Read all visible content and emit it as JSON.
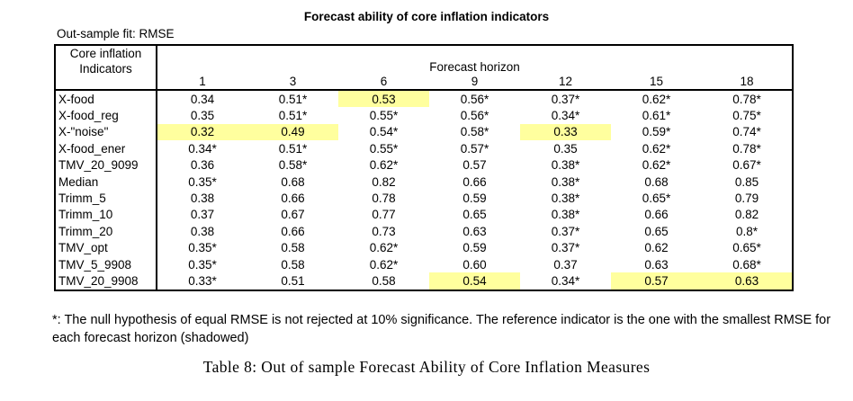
{
  "page": {
    "title": "Forecast ability of core inflation indicators",
    "subtitle": "Out-sample fit: RMSE",
    "footnote": "*: The null hypothesis of equal RMSE is not rejected at 10% significance. The reference indicator is the one with the smallest RMSE for each forecast horizon (shadowed)",
    "caption": "Table 8: Out of sample Forecast Ability of Core Inflation Measures"
  },
  "colors": {
    "highlight": "#ffff9e",
    "text": "#000000",
    "border": "#000000",
    "background": "#ffffff"
  },
  "table": {
    "corner": {
      "line1": "Core inflation",
      "line2": "Indicators"
    },
    "group_header": "Forecast horizon",
    "horizons": [
      "1",
      "3",
      "6",
      "9",
      "12",
      "15",
      "18"
    ],
    "rows": [
      {
        "label": "X-food",
        "values": [
          "0.34",
          "0.51*",
          "0.53",
          "0.56*",
          "0.37*",
          "0.62*",
          "0.78*"
        ]
      },
      {
        "label": "X-food_reg",
        "values": [
          "0.35",
          "0.51*",
          "0.55*",
          "0.56*",
          "0.34*",
          "0.61*",
          "0.75*"
        ]
      },
      {
        "label": "X-\"noise\"",
        "values": [
          "0.32",
          "0.49",
          "0.54*",
          "0.58*",
          "0.33",
          "0.59*",
          "0.74*"
        ]
      },
      {
        "label": "X-food_ener",
        "values": [
          "0.34*",
          "0.51*",
          "0.55*",
          "0.57*",
          "0.35",
          "0.62*",
          "0.78*"
        ]
      },
      {
        "label": "TMV_20_9099",
        "values": [
          "0.36",
          "0.58*",
          "0.62*",
          "0.57",
          "0.38*",
          "0.62*",
          "0.67*"
        ]
      },
      {
        "label": "Median",
        "values": [
          "0.35*",
          "0.68",
          "0.82",
          "0.66",
          "0.38*",
          "0.68",
          "0.85"
        ]
      },
      {
        "label": "Trimm_5",
        "values": [
          "0.38",
          "0.66",
          "0.78",
          "0.59",
          "0.38*",
          "0.65*",
          "0.79"
        ]
      },
      {
        "label": "Trimm_10",
        "values": [
          "0.37",
          "0.67",
          "0.77",
          "0.65",
          "0.38*",
          "0.66",
          "0.82"
        ]
      },
      {
        "label": "Trimm_20",
        "values": [
          "0.38",
          "0.66",
          "0.73",
          "0.63",
          "0.37*",
          "0.65",
          "0.8*"
        ]
      },
      {
        "label": "TMV_opt",
        "values": [
          "0.35*",
          "0.58",
          "0.62*",
          "0.59",
          "0.37*",
          "0.62",
          "0.65*"
        ]
      },
      {
        "label": "TMV_5_9908",
        "values": [
          "0.35*",
          "0.58",
          "0.62*",
          "0.60",
          "0.37",
          "0.63",
          "0.68*"
        ]
      },
      {
        "label": "TMV_20_9908",
        "values": [
          "0.33*",
          "0.51",
          "0.58",
          "0.54",
          "0.34*",
          "0.57",
          "0.63"
        ]
      }
    ],
    "highlighted_cells": [
      {
        "row": "X-food",
        "horizon": "6"
      },
      {
        "row": "X-\"noise\"",
        "horizon": "1"
      },
      {
        "row": "X-\"noise\"",
        "horizon": "3"
      },
      {
        "row": "X-\"noise\"",
        "horizon": "12"
      },
      {
        "row": "TMV_20_9908",
        "horizon": "9"
      },
      {
        "row": "TMV_20_9908",
        "horizon": "15"
      },
      {
        "row": "TMV_20_9908",
        "horizon": "18"
      }
    ]
  }
}
